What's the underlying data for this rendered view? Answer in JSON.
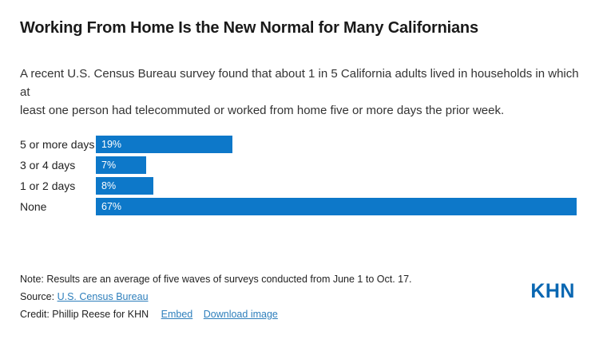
{
  "header": {
    "title": "Working From Home Is the New Normal for Many Californians",
    "subtitle": "A recent U.S. Census Bureau survey found that about 1 in 5 California adults lived in households in which at least one person had telecommuted or worked from home five or more days the prior week.",
    "subtitle_lines": [
      "A recent U.S. Census Bureau survey found that about 1 in 5 California adults lived in households in which at",
      "least one person had telecommuted or worked from home five or more days the prior week."
    ]
  },
  "chart_data": {
    "type": "bar",
    "orientation": "horizontal",
    "title": "Working From Home Is the New Normal for Many Californians",
    "subtitle": "A recent U.S. Census Bureau survey found that about 1 in 5 California adults lived in households in which at least one person had telecommuted or worked from home five or more days the prior week.",
    "categories": [
      "5 or more days",
      "3 or 4 days",
      "1 or 2 days",
      "None"
    ],
    "values": [
      19,
      7,
      8,
      67
    ],
    "value_labels": [
      "19%",
      "7%",
      "8%",
      "67%"
    ],
    "unit": "percent",
    "xlabel": "",
    "ylabel": "",
    "xlim": [
      0,
      67
    ],
    "grid": false,
    "legend": false,
    "bar_color": "#0d78c9",
    "value_label_position": "inside-start"
  },
  "footer": {
    "note": "Note: Results are an average of five waves of surveys conducted from June 1 to Oct. 17.",
    "source_label": "Source:",
    "source_link": "U.S. Census Bureau",
    "credit_text": "Credit: Phillip Reese for KHN",
    "embed_link": "Embed",
    "download_link": "Download image"
  },
  "logo": {
    "text": "KHN",
    "color": "#0a67b2"
  },
  "colors": {
    "bar": "#0d78c9",
    "link": "#2e7fbc",
    "logo": "#0a67b2",
    "title_text": "#1a1a1a",
    "body_text": "#333333",
    "label_text": "#222222",
    "background": "#ffffff"
  }
}
